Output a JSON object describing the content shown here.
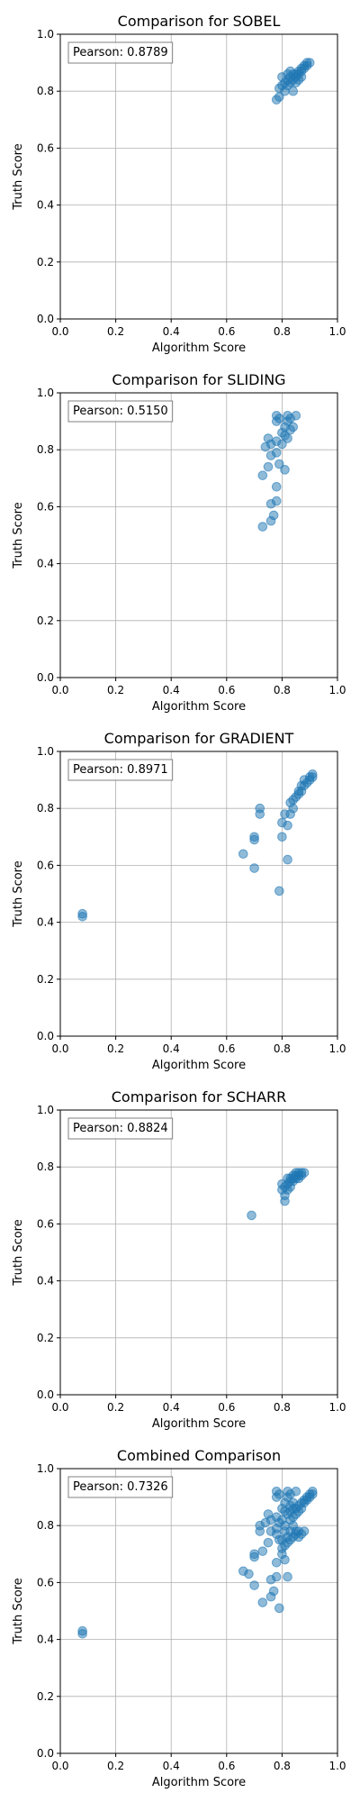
{
  "chart_data": [
    {
      "type": "scatter",
      "title": "Comparison for SOBEL",
      "xlabel": "Algorithm Score",
      "ylabel": "Truth Score",
      "xlim": [
        0,
        1
      ],
      "ylim": [
        0,
        1
      ],
      "xticks": [
        "0.0",
        "0.2",
        "0.4",
        "0.6",
        "0.8",
        "1.0"
      ],
      "yticks": [
        "0.0",
        "0.2",
        "0.4",
        "0.6",
        "0.8",
        "1.0"
      ],
      "grid": true,
      "annotation": "Pearson: 0.8789",
      "color": "#1f77b4",
      "points": [
        [
          0.78,
          0.77
        ],
        [
          0.79,
          0.78
        ],
        [
          0.79,
          0.81
        ],
        [
          0.8,
          0.82
        ],
        [
          0.81,
          0.8
        ],
        [
          0.81,
          0.83
        ],
        [
          0.82,
          0.82
        ],
        [
          0.82,
          0.84
        ],
        [
          0.83,
          0.83
        ],
        [
          0.83,
          0.85
        ],
        [
          0.84,
          0.8
        ],
        [
          0.84,
          0.84
        ],
        [
          0.84,
          0.86
        ],
        [
          0.85,
          0.85
        ],
        [
          0.85,
          0.86
        ],
        [
          0.86,
          0.86
        ],
        [
          0.86,
          0.87
        ],
        [
          0.87,
          0.87
        ],
        [
          0.87,
          0.88
        ],
        [
          0.88,
          0.89
        ],
        [
          0.88,
          0.88
        ],
        [
          0.89,
          0.89
        ],
        [
          0.89,
          0.9
        ],
        [
          0.9,
          0.9
        ],
        [
          0.82,
          0.86
        ],
        [
          0.83,
          0.87
        ],
        [
          0.85,
          0.83
        ],
        [
          0.86,
          0.84
        ],
        [
          0.8,
          0.85
        ],
        [
          0.87,
          0.85
        ]
      ]
    },
    {
      "type": "scatter",
      "title": "Comparison for SLIDING",
      "xlabel": "Algorithm Score",
      "ylabel": "Truth Score",
      "xlim": [
        0,
        1
      ],
      "ylim": [
        0,
        1
      ],
      "xticks": [
        "0.0",
        "0.2",
        "0.4",
        "0.6",
        "0.8",
        "1.0"
      ],
      "yticks": [
        "0.0",
        "0.2",
        "0.4",
        "0.6",
        "0.8",
        "1.0"
      ],
      "grid": true,
      "annotation": "Pearson: 0.5150",
      "color": "#1f77b4",
      "points": [
        [
          0.73,
          0.53
        ],
        [
          0.76,
          0.55
        ],
        [
          0.77,
          0.57
        ],
        [
          0.76,
          0.61
        ],
        [
          0.78,
          0.62
        ],
        [
          0.78,
          0.67
        ],
        [
          0.73,
          0.71
        ],
        [
          0.75,
          0.74
        ],
        [
          0.79,
          0.75
        ],
        [
          0.81,
          0.73
        ],
        [
          0.76,
          0.78
        ],
        [
          0.78,
          0.79
        ],
        [
          0.74,
          0.81
        ],
        [
          0.76,
          0.82
        ],
        [
          0.78,
          0.83
        ],
        [
          0.8,
          0.82
        ],
        [
          0.82,
          0.84
        ],
        [
          0.75,
          0.84
        ],
        [
          0.8,
          0.86
        ],
        [
          0.81,
          0.85
        ],
        [
          0.83,
          0.87
        ],
        [
          0.81,
          0.88
        ],
        [
          0.78,
          0.9
        ],
        [
          0.79,
          0.91
        ],
        [
          0.82,
          0.9
        ],
        [
          0.83,
          0.91
        ],
        [
          0.85,
          0.92
        ],
        [
          0.82,
          0.92
        ],
        [
          0.78,
          0.92
        ],
        [
          0.84,
          0.88
        ]
      ]
    },
    {
      "type": "scatter",
      "title": "Comparison for GRADIENT",
      "xlabel": "Algorithm Score",
      "ylabel": "Truth Score",
      "xlim": [
        0,
        1
      ],
      "ylim": [
        0,
        1
      ],
      "xticks": [
        "0.0",
        "0.2",
        "0.4",
        "0.6",
        "0.8",
        "1.0"
      ],
      "yticks": [
        "0.0",
        "0.2",
        "0.4",
        "0.6",
        "0.8",
        "1.0"
      ],
      "grid": true,
      "annotation": "Pearson: 0.8971",
      "color": "#1f77b4",
      "points": [
        [
          0.08,
          0.42
        ],
        [
          0.08,
          0.43
        ],
        [
          0.66,
          0.64
        ],
        [
          0.7,
          0.59
        ],
        [
          0.7,
          0.69
        ],
        [
          0.7,
          0.7
        ],
        [
          0.72,
          0.78
        ],
        [
          0.72,
          0.8
        ],
        [
          0.79,
          0.51
        ],
        [
          0.82,
          0.62
        ],
        [
          0.8,
          0.7
        ],
        [
          0.8,
          0.75
        ],
        [
          0.82,
          0.74
        ],
        [
          0.81,
          0.78
        ],
        [
          0.83,
          0.78
        ],
        [
          0.84,
          0.8
        ],
        [
          0.83,
          0.82
        ],
        [
          0.84,
          0.83
        ],
        [
          0.85,
          0.84
        ],
        [
          0.86,
          0.86
        ],
        [
          0.87,
          0.86
        ],
        [
          0.87,
          0.88
        ],
        [
          0.88,
          0.88
        ],
        [
          0.88,
          0.9
        ],
        [
          0.89,
          0.89
        ],
        [
          0.9,
          0.9
        ],
        [
          0.9,
          0.91
        ],
        [
          0.91,
          0.92
        ],
        [
          0.91,
          0.91
        ],
        [
          0.86,
          0.85
        ]
      ]
    },
    {
      "type": "scatter",
      "title": "Comparison for SCHARR",
      "xlabel": "Algorithm Score",
      "ylabel": "Truth Score",
      "xlim": [
        0,
        1
      ],
      "ylim": [
        0,
        1
      ],
      "xticks": [
        "0.0",
        "0.2",
        "0.4",
        "0.6",
        "0.8",
        "1.0"
      ],
      "yticks": [
        "0.0",
        "0.2",
        "0.4",
        "0.6",
        "0.8",
        "1.0"
      ],
      "grid": true,
      "annotation": "Pearson: 0.8824",
      "color": "#1f77b4",
      "points": [
        [
          0.69,
          0.63
        ],
        [
          0.81,
          0.68
        ],
        [
          0.81,
          0.7
        ],
        [
          0.8,
          0.72
        ],
        [
          0.81,
          0.73
        ],
        [
          0.82,
          0.74
        ],
        [
          0.82,
          0.72
        ],
        [
          0.83,
          0.75
        ],
        [
          0.83,
          0.73
        ],
        [
          0.84,
          0.75
        ],
        [
          0.84,
          0.76
        ],
        [
          0.85,
          0.76
        ],
        [
          0.85,
          0.77
        ],
        [
          0.86,
          0.77
        ],
        [
          0.86,
          0.78
        ],
        [
          0.87,
          0.78
        ],
        [
          0.87,
          0.77
        ],
        [
          0.85,
          0.78
        ],
        [
          0.83,
          0.76
        ],
        [
          0.84,
          0.77
        ],
        [
          0.82,
          0.76
        ],
        [
          0.86,
          0.76
        ],
        [
          0.8,
          0.74
        ],
        [
          0.88,
          0.78
        ]
      ]
    },
    {
      "type": "scatter",
      "title": "Combined Comparison",
      "xlabel": "Algorithm Score",
      "ylabel": "Truth Score",
      "xlim": [
        0,
        1
      ],
      "ylim": [
        0,
        1
      ],
      "xticks": [
        "0.0",
        "0.2",
        "0.4",
        "0.6",
        "0.8",
        "1.0"
      ],
      "yticks": [
        "0.0",
        "0.2",
        "0.4",
        "0.6",
        "0.8",
        "1.0"
      ],
      "grid": true,
      "annotation": "Pearson: 0.7326",
      "color": "#1f77b4",
      "points": [
        [
          0.08,
          0.42
        ],
        [
          0.08,
          0.43
        ],
        [
          0.66,
          0.64
        ],
        [
          0.68,
          0.63
        ],
        [
          0.7,
          0.59
        ],
        [
          0.7,
          0.69
        ],
        [
          0.7,
          0.7
        ],
        [
          0.72,
          0.78
        ],
        [
          0.72,
          0.8
        ],
        [
          0.73,
          0.53
        ],
        [
          0.73,
          0.71
        ],
        [
          0.74,
          0.81
        ],
        [
          0.75,
          0.74
        ],
        [
          0.75,
          0.84
        ],
        [
          0.76,
          0.55
        ],
        [
          0.76,
          0.61
        ],
        [
          0.76,
          0.78
        ],
        [
          0.76,
          0.82
        ],
        [
          0.77,
          0.57
        ],
        [
          0.78,
          0.62
        ],
        [
          0.78,
          0.67
        ],
        [
          0.78,
          0.77
        ],
        [
          0.78,
          0.79
        ],
        [
          0.78,
          0.83
        ],
        [
          0.78,
          0.9
        ],
        [
          0.78,
          0.92
        ],
        [
          0.79,
          0.51
        ],
        [
          0.79,
          0.75
        ],
        [
          0.79,
          0.81
        ],
        [
          0.79,
          0.91
        ],
        [
          0.8,
          0.7
        ],
        [
          0.8,
          0.72
        ],
        [
          0.8,
          0.75
        ],
        [
          0.8,
          0.82
        ],
        [
          0.8,
          0.86
        ],
        [
          0.81,
          0.68
        ],
        [
          0.81,
          0.73
        ],
        [
          0.81,
          0.78
        ],
        [
          0.81,
          0.8
        ],
        [
          0.81,
          0.85
        ],
        [
          0.81,
          0.88
        ],
        [
          0.82,
          0.62
        ],
        [
          0.82,
          0.74
        ],
        [
          0.82,
          0.76
        ],
        [
          0.82,
          0.84
        ],
        [
          0.82,
          0.9
        ],
        [
          0.82,
          0.92
        ],
        [
          0.83,
          0.75
        ],
        [
          0.83,
          0.78
        ],
        [
          0.83,
          0.82
        ],
        [
          0.83,
          0.85
        ],
        [
          0.83,
          0.87
        ],
        [
          0.83,
          0.91
        ],
        [
          0.84,
          0.76
        ],
        [
          0.84,
          0.8
        ],
        [
          0.84,
          0.83
        ],
        [
          0.84,
          0.86
        ],
        [
          0.84,
          0.88
        ],
        [
          0.85,
          0.77
        ],
        [
          0.85,
          0.78
        ],
        [
          0.85,
          0.84
        ],
        [
          0.85,
          0.86
        ],
        [
          0.85,
          0.92
        ],
        [
          0.86,
          0.76
        ],
        [
          0.86,
          0.78
        ],
        [
          0.86,
          0.85
        ],
        [
          0.86,
          0.87
        ],
        [
          0.87,
          0.77
        ],
        [
          0.87,
          0.86
        ],
        [
          0.87,
          0.88
        ],
        [
          0.88,
          0.78
        ],
        [
          0.88,
          0.88
        ],
        [
          0.88,
          0.89
        ],
        [
          0.89,
          0.89
        ],
        [
          0.89,
          0.9
        ],
        [
          0.9,
          0.9
        ],
        [
          0.9,
          0.91
        ],
        [
          0.91,
          0.92
        ],
        [
          0.91,
          0.91
        ]
      ]
    }
  ]
}
